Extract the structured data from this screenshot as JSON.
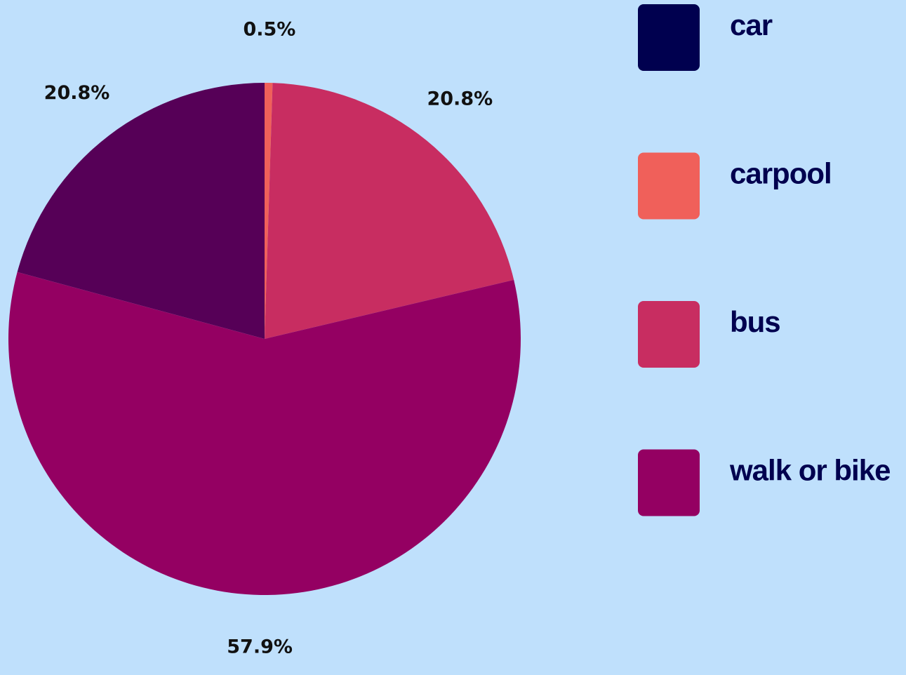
{
  "chart_data": {
    "type": "pie",
    "categories": [
      "car",
      "carpool",
      "bus",
      "walk or bike"
    ],
    "values": [
      20.8,
      0.5,
      20.8,
      57.9
    ],
    "value_labels": [
      "20.8%",
      "0.5%",
      "20.8%",
      "57.9%"
    ],
    "colors": [
      "#560057",
      "#f0605a",
      "#c82d61",
      "#940062"
    ],
    "legend_colors": [
      "#00004f",
      "#f0605a",
      "#c82d61",
      "#940062"
    ],
    "legend": "right"
  }
}
